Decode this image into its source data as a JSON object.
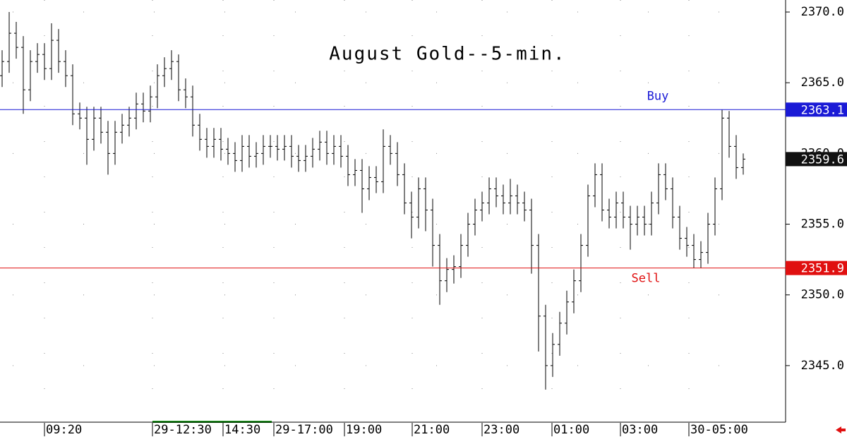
{
  "chart_data": {
    "type": "ohlc",
    "title": "August Gold--5-min.",
    "open": [
      2365.5,
      2366.5,
      2368.5,
      2367.5,
      2364.5,
      2366.5,
      2367.0,
      2366.0,
      2368.0,
      2366.5,
      2365.5,
      2362.8,
      2362.5,
      2361.0,
      2362.5,
      2361.5,
      2360.0,
      2361.5,
      2362.0,
      2362.5,
      2363.5,
      2363.0,
      2364.0,
      2365.5,
      2366.0,
      2366.5,
      2364.5,
      2364.0,
      2362.0,
      2361.0,
      2360.5,
      2361.0,
      2360.3,
      2360.0,
      2359.5,
      2360.5,
      2359.8,
      2360.0,
      2360.5,
      2360.5,
      2360.3,
      2360.5,
      2359.8,
      2359.5,
      2359.8,
      2360.3,
      2360.8,
      2360.0,
      2360.5,
      2359.8,
      2358.5,
      2358.8,
      2357.5,
      2358.3,
      2358.0,
      2360.5,
      2360.0,
      2358.5,
      2356.5,
      2355.5,
      2357.5,
      2356.0,
      2353.5,
      2351.0,
      2351.8,
      2352.0,
      2353.5,
      2355.0,
      2356.0,
      2356.5,
      2357.5,
      2357.0,
      2356.5,
      2357.0,
      2356.5,
      2356.0,
      2353.5,
      2348.5,
      2345.0,
      2346.5,
      2348.0,
      2349.5,
      2351.0,
      2353.5,
      2357.0,
      2358.5,
      2356.0,
      2355.5,
      2356.5,
      2355.5,
      2355.0,
      2355.5,
      2355.0,
      2356.5,
      2358.5,
      2357.5,
      2355.5,
      2354.0,
      2353.5,
      2352.5,
      2353.0,
      2355.0,
      2357.5,
      2362.5,
      2360.5,
      2359.0
    ],
    "high": [
      2367.3,
      2370.0,
      2369.3,
      2368.3,
      2367.3,
      2367.8,
      2367.8,
      2369.2,
      2368.8,
      2367.3,
      2366.3,
      2363.6,
      2363.3,
      2363.3,
      2363.3,
      2362.3,
      2362.3,
      2362.8,
      2363.3,
      2364.3,
      2364.3,
      2364.8,
      2366.3,
      2366.8,
      2367.3,
      2367.0,
      2365.3,
      2364.8,
      2362.8,
      2361.8,
      2361.8,
      2361.8,
      2361.1,
      2360.8,
      2361.3,
      2361.3,
      2360.8,
      2361.3,
      2361.3,
      2361.3,
      2361.3,
      2361.3,
      2360.6,
      2360.6,
      2361.1,
      2361.6,
      2361.6,
      2361.3,
      2361.3,
      2360.6,
      2359.6,
      2359.6,
      2359.1,
      2359.1,
      2361.7,
      2361.3,
      2360.8,
      2359.3,
      2357.3,
      2358.3,
      2358.3,
      2356.8,
      2354.3,
      2352.6,
      2352.8,
      2354.3,
      2355.8,
      2356.8,
      2357.3,
      2358.3,
      2358.3,
      2357.8,
      2358.2,
      2357.8,
      2357.3,
      2356.8,
      2354.3,
      2349.3,
      2347.3,
      2348.8,
      2350.3,
      2351.8,
      2354.3,
      2357.8,
      2359.3,
      2359.3,
      2356.8,
      2357.3,
      2357.3,
      2356.3,
      2356.3,
      2356.3,
      2357.3,
      2359.3,
      2359.3,
      2358.3,
      2356.3,
      2354.8,
      2354.3,
      2353.8,
      2355.8,
      2358.3,
      2363.1,
      2363.0,
      2361.3,
      2360.0
    ],
    "low": [
      2364.7,
      2365.7,
      2366.7,
      2362.8,
      2363.7,
      2365.7,
      2365.2,
      2365.2,
      2365.7,
      2364.7,
      2362.0,
      2361.7,
      2359.2,
      2360.2,
      2360.7,
      2358.5,
      2359.2,
      2360.7,
      2361.2,
      2361.7,
      2362.2,
      2362.2,
      2363.2,
      2364.7,
      2365.2,
      2363.7,
      2363.2,
      2361.2,
      2360.2,
      2359.7,
      2359.7,
      2359.5,
      2359.2,
      2358.7,
      2358.7,
      2359.0,
      2359.0,
      2359.2,
      2359.7,
      2359.5,
      2359.5,
      2359.0,
      2358.7,
      2358.7,
      2359.0,
      2359.5,
      2359.2,
      2359.2,
      2359.0,
      2357.7,
      2357.7,
      2355.8,
      2356.7,
      2357.2,
      2357.2,
      2359.2,
      2357.7,
      2355.7,
      2354.0,
      2354.7,
      2354.5,
      2352.0,
      2349.3,
      2350.2,
      2350.8,
      2351.2,
      2352.7,
      2354.2,
      2355.2,
      2355.7,
      2356.2,
      2355.7,
      2355.7,
      2355.7,
      2355.2,
      2351.5,
      2346.0,
      2343.3,
      2344.2,
      2345.7,
      2347.2,
      2348.7,
      2350.2,
      2352.7,
      2356.2,
      2355.2,
      2354.7,
      2354.7,
      2354.7,
      2353.2,
      2354.2,
      2354.2,
      2354.2,
      2355.7,
      2356.7,
      2354.7,
      2353.2,
      2352.7,
      2351.9,
      2351.9,
      2352.2,
      2354.2,
      2356.7,
      2359.7,
      2358.2,
      2358.5
    ],
    "close": [
      2366.5,
      2368.5,
      2367.5,
      2364.5,
      2366.5,
      2367.0,
      2366.0,
      2368.0,
      2366.5,
      2365.5,
      2362.8,
      2362.5,
      2361.0,
      2362.5,
      2361.5,
      2360.0,
      2361.5,
      2362.0,
      2362.5,
      2363.5,
      2363.0,
      2364.0,
      2365.5,
      2366.0,
      2366.5,
      2364.5,
      2364.0,
      2362.0,
      2361.0,
      2360.5,
      2361.0,
      2360.3,
      2360.0,
      2359.5,
      2360.5,
      2359.8,
      2360.0,
      2360.5,
      2360.5,
      2360.3,
      2360.5,
      2359.8,
      2359.5,
      2359.8,
      2360.3,
      2360.8,
      2360.0,
      2360.5,
      2359.8,
      2358.5,
      2358.8,
      2357.5,
      2358.3,
      2358.0,
      2360.5,
      2360.0,
      2358.5,
      2356.5,
      2355.5,
      2357.5,
      2356.0,
      2353.5,
      2351.0,
      2351.8,
      2352.0,
      2353.5,
      2355.0,
      2356.0,
      2356.5,
      2357.5,
      2357.0,
      2356.5,
      2357.0,
      2356.5,
      2356.0,
      2353.5,
      2348.5,
      2345.0,
      2346.5,
      2348.0,
      2349.5,
      2351.0,
      2353.5,
      2357.0,
      2358.5,
      2356.0,
      2355.5,
      2356.5,
      2355.5,
      2355.0,
      2355.5,
      2355.0,
      2356.5,
      2358.5,
      2357.5,
      2355.5,
      2354.0,
      2353.5,
      2352.5,
      2353.0,
      2355.0,
      2357.5,
      2362.5,
      2360.5,
      2359.0,
      2359.6
    ],
    "color": "#000000",
    "xlim": [
      -0.3,
      110.7
    ],
    "xticks": [
      {
        "value": 6.0,
        "label": "09:20"
      },
      {
        "value": 21.3,
        "label": "29-12:30"
      },
      {
        "value": 31.3,
        "label": "14:30"
      },
      {
        "value": 38.5,
        "label": "29-17:00"
      },
      {
        "value": 48.5,
        "label": "19:00"
      },
      {
        "value": 58.1,
        "label": "21:00"
      },
      {
        "value": 68.0,
        "label": "23:00"
      },
      {
        "value": 77.9,
        "label": "01:00"
      },
      {
        "value": 87.6,
        "label": "03:00"
      },
      {
        "value": 97.3,
        "label": "30-05:00"
      }
    ],
    "ylim": [
      2341.05,
      2370.85
    ],
    "yticks": [
      {
        "value": 2345,
        "label": "2345.0"
      },
      {
        "value": 2350,
        "label": "2350.0"
      },
      {
        "value": 2355,
        "label": "2355.0"
      },
      {
        "value": 2360,
        "label": "2360.0"
      },
      {
        "value": 2365,
        "label": "2365.0"
      },
      {
        "value": 2370,
        "label": "2370.0"
      }
    ],
    "grid": true,
    "levels": [
      {
        "name": "Buy",
        "value": 2363.1,
        "color": "#1a1ad6"
      },
      {
        "name": "Sell",
        "value": 2351.9,
        "color": "#e01010"
      }
    ],
    "last": 2359.6
  }
}
